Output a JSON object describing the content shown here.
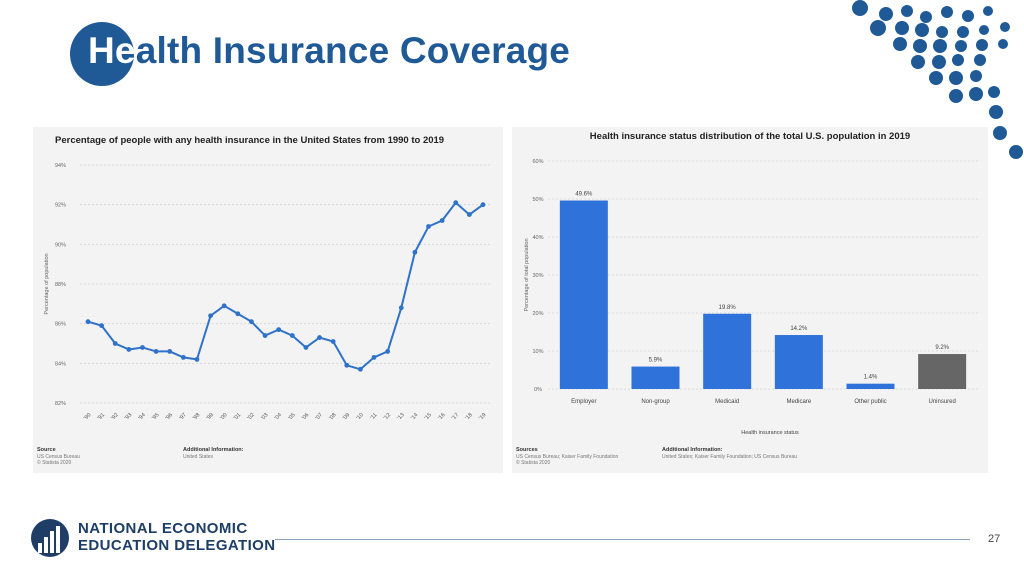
{
  "slide": {
    "title_lead": "He",
    "title_rest": "alth Insurance Coverage",
    "page_number": "27",
    "org_line1": "NATIONAL ECONOMIC",
    "org_line2": "EDUCATION DELEGATION"
  },
  "colors": {
    "brand_blue": "#1f5a96",
    "line_series": "#2f72c9",
    "bar_blue": "#2f72d9",
    "bar_gray": "#666666"
  },
  "chart_data": [
    {
      "type": "line",
      "title": "Percentage of people with any health insurance in the United States from 1990 to 2019",
      "ylabel": "Percentage of population",
      "xlabel": "",
      "ylim": [
        82,
        94
      ],
      "y_ticks": [
        "94%",
        "92%",
        "90%",
        "88%",
        "86%",
        "84%",
        "82%"
      ],
      "y_tick_values": [
        94,
        92,
        90,
        88,
        86,
        84,
        82
      ],
      "grid": true,
      "categories": [
        "'90",
        "'91",
        "'92",
        "'93",
        "'94",
        "'95",
        "'96",
        "'97",
        "'98",
        "'99",
        "'00",
        "'01",
        "'02",
        "'03",
        "'04",
        "'05",
        "'06",
        "'07",
        "'08",
        "'09",
        "'10",
        "'11",
        "'12",
        "'13",
        "'14",
        "'15",
        "'16",
        "'17",
        "'18",
        "'19"
      ],
      "values": [
        86.1,
        85.9,
        85.0,
        84.7,
        84.8,
        84.6,
        84.6,
        84.3,
        84.2,
        86.4,
        86.9,
        86.5,
        86.1,
        85.4,
        85.7,
        85.4,
        84.8,
        85.3,
        85.1,
        83.9,
        83.7,
        84.3,
        84.6,
        86.8,
        89.6,
        90.9,
        91.2,
        92.1,
        91.5,
        92.0
      ],
      "source_heading": "Source",
      "source_lines": [
        "US Census Bureau",
        "© Statista 2020"
      ],
      "info_heading": "Additional Information:",
      "info_lines": [
        "United States"
      ]
    },
    {
      "type": "bar",
      "title": "Health insurance status distribution of the total U.S. population in 2019",
      "ylabel": "Percentage of total population",
      "xlabel": "Health insurance status",
      "ylim": [
        0,
        60
      ],
      "y_ticks": [
        "60%",
        "50%",
        "40%",
        "30%",
        "20%",
        "10%",
        "0%"
      ],
      "y_tick_values": [
        60,
        50,
        40,
        30,
        20,
        10,
        0
      ],
      "grid": true,
      "categories": [
        "Employer",
        "Non-group",
        "Medicaid",
        "Medicare",
        "Other public",
        "Uninsured"
      ],
      "values": [
        49.6,
        5.9,
        19.8,
        14.2,
        1.4,
        9.2
      ],
      "data_labels": [
        "49.6%",
        "5.9%",
        "19.8%",
        "14.2%",
        "1.4%",
        "9.2%"
      ],
      "source_heading": "Sources",
      "source_lines": [
        "US Census Bureau; Kaiser Family Foundation",
        "© Statista 2020"
      ],
      "info_heading": "Additional Information:",
      "info_lines": [
        "United States; Kaiser Family Foundation; US Census Bureau"
      ]
    }
  ]
}
